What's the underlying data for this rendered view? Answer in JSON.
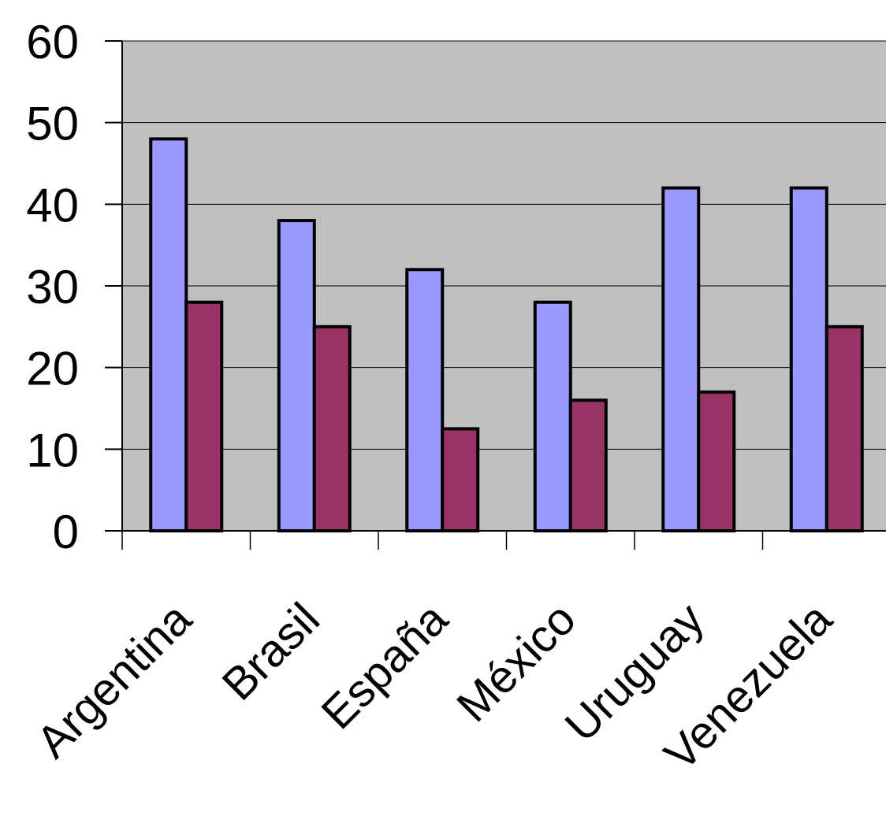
{
  "chart_data": {
    "type": "bar",
    "title": "",
    "xlabel": "",
    "ylabel": "",
    "ylim": [
      0,
      60
    ],
    "yticks": [
      0,
      10,
      20,
      30,
      40,
      50,
      60
    ],
    "grid": true,
    "categories": [
      "Argentina",
      "Brasil",
      "España",
      "México",
      "Uruguay",
      "Venezuela"
    ],
    "series": [
      {
        "values": [
          48,
          38,
          32,
          28,
          42,
          42
        ],
        "color": "#9999ff"
      },
      {
        "values": [
          28,
          25,
          12.5,
          16,
          17,
          25
        ],
        "color": "#993366"
      }
    ],
    "plot_background": "#c0c0c0"
  }
}
